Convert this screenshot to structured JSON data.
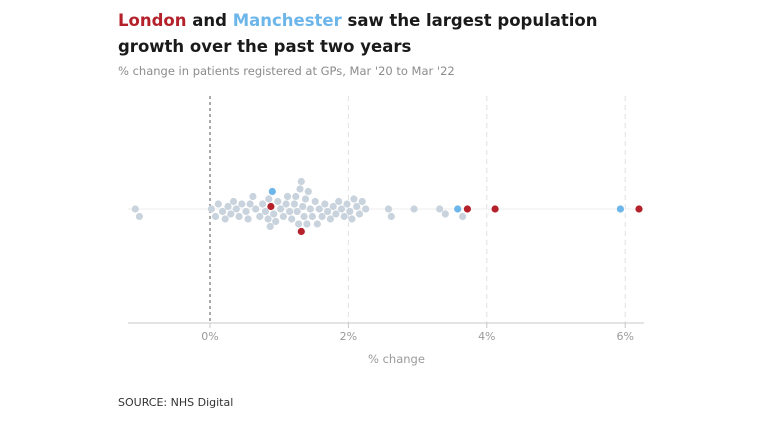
{
  "title": {
    "london": "London",
    "and": " and ",
    "manchester": "Manchester",
    "rest": " saw the largest population growth over the past two years"
  },
  "subtitle": "% change in patients registered at GPs, Mar '20 to Mar '22",
  "source": "SOURCE: NHS Digital",
  "colors": {
    "london": "#b5212b",
    "manchester": "#6cb6ea",
    "other": "#c9d3dd",
    "zero_line": "#555555",
    "grid": "#e2e2e2",
    "axis": "#c8c8c8"
  },
  "chart_data": {
    "type": "beeswarm",
    "xlabel": "% change",
    "xlim": [
      -1.2,
      6.3
    ],
    "xticks": [
      {
        "value": 0,
        "label": "0%"
      },
      {
        "value": 2,
        "label": "2%"
      },
      {
        "value": 4,
        "label": "4%"
      },
      {
        "value": 6,
        "label": "6%"
      }
    ],
    "grid": true,
    "series": [
      {
        "name": "London",
        "color_key": "london",
        "values": [
          1.32,
          0.88,
          3.72,
          4.12,
          6.2
        ]
      },
      {
        "name": "Manchester",
        "color_key": "manchester",
        "values": [
          0.9,
          3.58,
          5.93
        ]
      },
      {
        "name": "",
        "color_key": "other",
        "values": [
          -1.08,
          -1.02,
          0.02,
          0.08,
          0.12,
          0.18,
          0.22,
          0.26,
          0.3,
          0.34,
          0.38,
          0.42,
          0.46,
          0.52,
          0.55,
          0.58,
          0.62,
          0.66,
          0.72,
          0.76,
          0.8,
          0.84,
          0.85,
          0.87,
          0.92,
          0.95,
          0.98,
          1.02,
          1.06,
          1.1,
          1.12,
          1.15,
          1.18,
          1.22,
          1.24,
          1.26,
          1.28,
          1.3,
          1.32,
          1.34,
          1.36,
          1.38,
          1.4,
          1.42,
          1.45,
          1.48,
          1.52,
          1.55,
          1.58,
          1.62,
          1.66,
          1.7,
          1.74,
          1.78,
          1.82,
          1.86,
          1.9,
          1.94,
          1.98,
          2.02,
          2.05,
          2.08,
          2.12,
          2.16,
          2.2,
          2.25,
          2.58,
          2.62,
          2.95,
          3.32,
          3.4,
          3.65
        ]
      }
    ]
  }
}
